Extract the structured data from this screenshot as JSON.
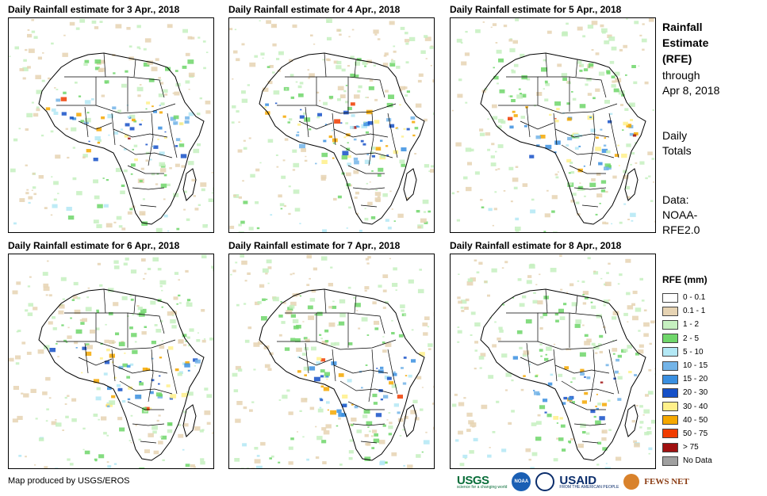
{
  "panels": [
    {
      "title": "Daily Rainfall estimate for 3 Apr., 2018"
    },
    {
      "title": "Daily Rainfall estimate for 4 Apr., 2018"
    },
    {
      "title": "Daily Rainfall estimate for 5 Apr., 2018"
    },
    {
      "title": "Daily Rainfall estimate for 6 Apr., 2018"
    },
    {
      "title": "Daily Rainfall estimate for 7 Apr., 2018"
    },
    {
      "title": "Daily Rainfall estimate for 8 Apr., 2018"
    }
  ],
  "side": {
    "title_line1": "Rainfall",
    "title_line2": "Estimate",
    "title_line3": "(RFE)",
    "through_line1": "through",
    "through_line2": "Apr 8, 2018",
    "totals_line1": "Daily",
    "totals_line2": "Totals",
    "data_line1": "Data:",
    "data_line2": "NOAA-",
    "data_line3": "RFE2.0"
  },
  "legend": {
    "title": "RFE (mm)",
    "items": [
      {
        "label": "0 - 0.1",
        "color": "#ffffff"
      },
      {
        "label": "0.1 - 1",
        "color": "#e6d3b3"
      },
      {
        "label": "1 - 2",
        "color": "#c6f0c0"
      },
      {
        "label": "2 - 5",
        "color": "#6fd66a"
      },
      {
        "label": "5 - 10",
        "color": "#b3e8f5"
      },
      {
        "label": "10 - 15",
        "color": "#73b4e8"
      },
      {
        "label": "15 - 20",
        "color": "#3a8fe0"
      },
      {
        "label": "20 - 30",
        "color": "#1550c8"
      },
      {
        "label": "30 - 40",
        "color": "#fff08a"
      },
      {
        "label": "40 - 50",
        "color": "#f5a800"
      },
      {
        "label": "50 - 75",
        "color": "#f03c00"
      },
      {
        "label": "> 75",
        "color": "#a01010"
      },
      {
        "label": "No Data",
        "color": "#a0a0a0"
      }
    ]
  },
  "credit": "Map produced by USGS/EROS",
  "logos": {
    "usgs": "USGS",
    "usgs_tagline": "science for a changing world",
    "noaa": "NOAA",
    "usaid": "USAID",
    "usaid_tagline": "FROM THE AMERICAN PEOPLE",
    "fews": "FEWS NET"
  }
}
